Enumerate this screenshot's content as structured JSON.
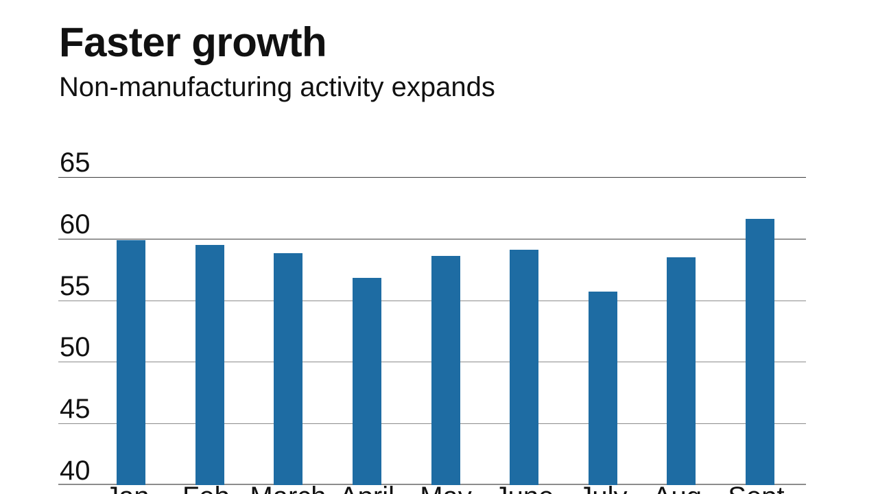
{
  "page": {
    "background": "#ffffff",
    "text_color": "#111111"
  },
  "chart_data": {
    "type": "bar",
    "title": "Faster growth",
    "subtitle": "Non-manufacturing activity expands",
    "categories": [
      "Jan.",
      "Feb.",
      "March",
      "April",
      "May",
      "June",
      "July",
      "Aug.",
      "Sept."
    ],
    "values": [
      59.9,
      59.5,
      58.8,
      56.8,
      58.6,
      59.1,
      55.7,
      58.5,
      61.6
    ],
    "xlabel": "",
    "ylabel": "",
    "ylim": [
      40,
      65
    ],
    "yticks": [
      65,
      60,
      55,
      50,
      45,
      40
    ],
    "grid": true,
    "legend": false,
    "bar_color": "#1e6ca3",
    "gridline_colors": [
      "#3c3c3c",
      "#3c3c3c",
      "#8c8c8c",
      "#8c8c8c",
      "#8c8c8c",
      "#8c8c8c"
    ],
    "baseline_color": "#8c8c8c",
    "tick_label_color": "#111111"
  }
}
